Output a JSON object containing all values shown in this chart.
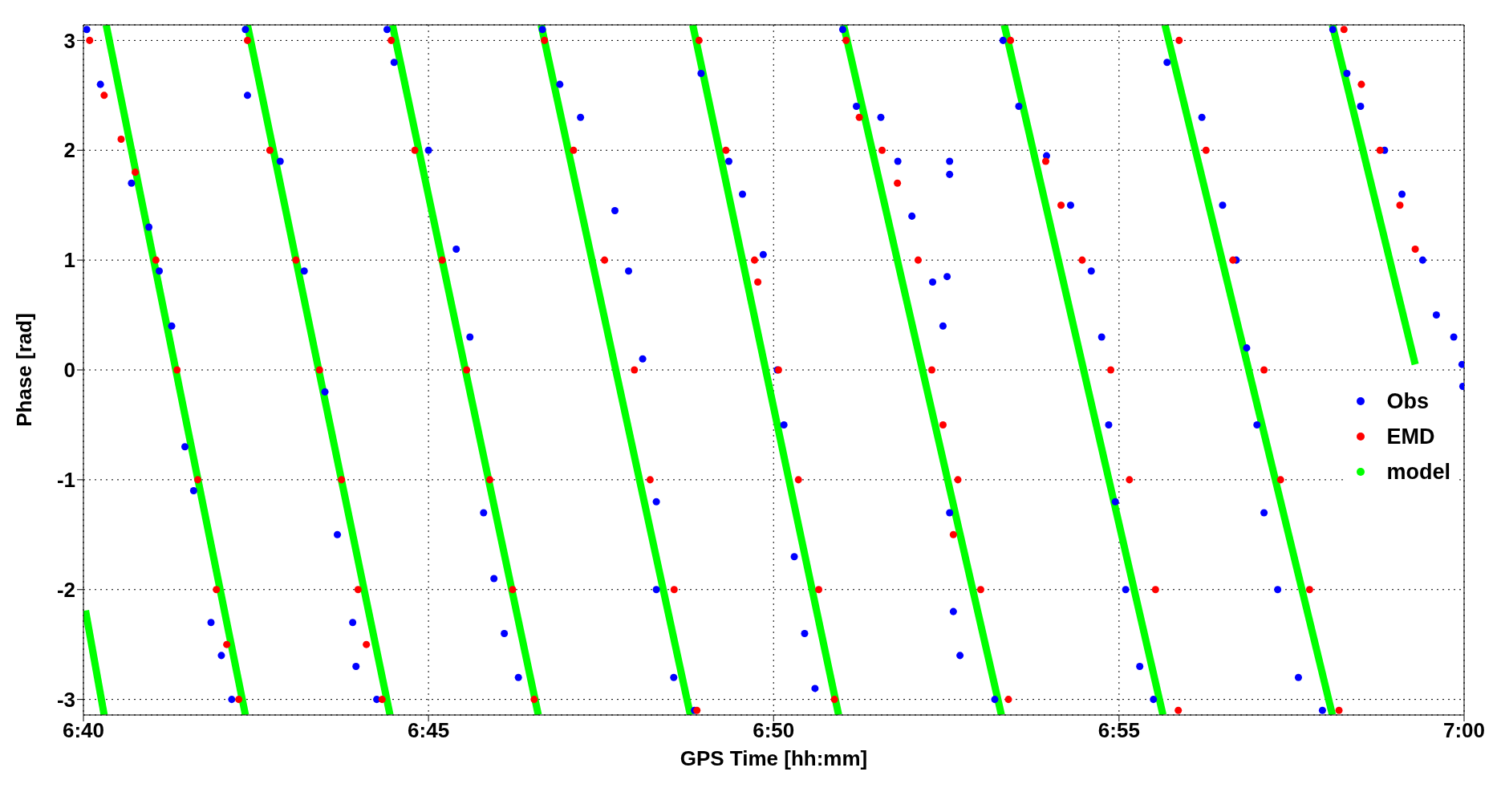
{
  "chart_data": {
    "type": "scatter",
    "xlabel": "GPS Time [hh:mm]",
    "ylabel": "Phase [rad]",
    "xlim": [
      6.6667,
      7
    ],
    "xticks": [
      {
        "value": 6.6667,
        "label": "6:40"
      },
      {
        "value": 6.75,
        "label": "6:45"
      },
      {
        "value": 6.8333,
        "label": "6:50"
      },
      {
        "value": 6.9167,
        "label": "6:55"
      },
      {
        "value": 7,
        "label": "7:00"
      }
    ],
    "ylim": [
      -3.1416,
      3.1416
    ],
    "yticks": [
      -3,
      -2,
      -1,
      0,
      1,
      2,
      3
    ],
    "grid": true,
    "legend": "right",
    "marker": "circle",
    "series": [
      {
        "name": "Obs",
        "color": "#0000ff",
        "x": [
          6.6675,
          6.6708,
          6.6783,
          6.6825,
          6.685,
          6.688,
          6.6912,
          6.6933,
          6.6975,
          6.7,
          6.7025,
          6.7058,
          6.7063,
          6.7142,
          6.72,
          6.725,
          6.728,
          6.7317,
          6.7325,
          6.7375,
          6.74,
          6.7417,
          6.75,
          6.7567,
          6.76,
          6.7633,
          6.7658,
          6.7683,
          6.7717,
          6.7775,
          6.7817,
          6.7867,
          6.795,
          6.7983,
          6.8017,
          6.805,
          6.805,
          6.8092,
          6.8142,
          6.8158,
          6.8225,
          6.8258,
          6.8308,
          6.8342,
          6.8358,
          6.8383,
          6.8408,
          6.8433,
          6.85,
          6.8533,
          6.8592,
          6.8633,
          6.8667,
          6.8717,
          6.8742,
          6.8758,
          6.8758,
          6.8752,
          6.8758,
          6.8767,
          6.8783,
          6.8867,
          6.8887,
          6.8925,
          6.8992,
          6.905,
          6.91,
          6.9125,
          6.9142,
          6.9158,
          6.9183,
          6.9217,
          6.925,
          6.9283,
          6.9367,
          6.9417,
          6.945,
          6.9475,
          6.95,
          6.9517,
          6.955,
          6.96,
          6.9658,
          6.9683,
          6.9717,
          6.975,
          6.9808,
          6.985,
          6.99,
          6.9933,
          6.9975,
          6.9995,
          6.9997
        ],
        "values": [
          3.1,
          2.6,
          1.7,
          1.3,
          0.9,
          0.4,
          -0.7,
          -1.1,
          -2.3,
          -2.6,
          -3.0,
          3.1,
          2.5,
          1.9,
          0.9,
          -0.2,
          -1.5,
          -2.3,
          -2.7,
          -3.0,
          3.1,
          2.8,
          2.0,
          1.1,
          0.3,
          -1.3,
          -1.9,
          -2.4,
          -2.8,
          3.1,
          2.6,
          2.3,
          1.45,
          0.9,
          0.1,
          -1.2,
          -2.0,
          -2.8,
          -3.1,
          2.7,
          1.9,
          1.6,
          1.05,
          0.0,
          -0.5,
          -1.7,
          -2.4,
          -2.9,
          3.1,
          2.4,
          2.3,
          1.9,
          1.4,
          0.8,
          0.4,
          1.9,
          1.78,
          0.85,
          -1.3,
          -2.2,
          -2.6,
          -3.0,
          3.0,
          2.4,
          1.95,
          1.5,
          0.9,
          0.3,
          -0.5,
          -1.2,
          -2.0,
          -2.7,
          -3.0,
          2.8,
          2.3,
          1.5,
          1.0,
          0.2,
          -0.5,
          -1.3,
          -2.0,
          -2.8,
          -3.1,
          3.1,
          2.7,
          2.4,
          2.0,
          1.6,
          1.0,
          0.5,
          0.3,
          0.05,
          -0.15
        ]
      },
      {
        "name": "EMD",
        "color": "#ff0000",
        "x": [
          6.6682,
          6.6717,
          6.6758,
          6.6792,
          6.6842,
          6.6893,
          6.6943,
          6.6988,
          6.7013,
          6.7042,
          6.7063,
          6.7117,
          6.718,
          6.7237,
          6.729,
          6.733,
          6.735,
          6.7388,
          6.741,
          6.7467,
          6.7533,
          6.7592,
          6.7648,
          6.7703,
          6.7755,
          6.778,
          6.785,
          6.7925,
          6.7997,
          6.8035,
          6.8093,
          6.8148,
          6.8153,
          6.8218,
          6.8287,
          6.8295,
          6.8345,
          6.8393,
          6.8442,
          6.848,
          6.8508,
          6.854,
          6.8595,
          6.8632,
          6.8682,
          6.8715,
          6.8742,
          6.8778,
          6.8767,
          6.8833,
          6.89,
          6.8905,
          6.899,
          6.9027,
          6.9078,
          6.9147,
          6.9192,
          6.9255,
          6.931,
          6.9312,
          6.9377,
          6.9442,
          6.9517,
          6.9557,
          6.9627,
          6.9698,
          6.971,
          6.9752,
          6.9797,
          6.9845,
          6.9882
        ],
        "values": [
          3.0,
          2.5,
          2.1,
          1.8,
          1.0,
          0,
          -1,
          -2,
          -2.5,
          -3,
          3.0,
          2.0,
          1.0,
          0,
          -1,
          -2,
          -2.5,
          -3,
          3,
          2,
          1,
          0,
          -1,
          -2,
          -3,
          3,
          2,
          1,
          0,
          -1,
          -2,
          -3.1,
          3,
          2,
          1,
          0.8,
          0,
          -1,
          -2,
          -3,
          3,
          2.3,
          2,
          1.7,
          1,
          0,
          -0.5,
          -1,
          -1.5,
          -2,
          -3,
          3,
          1.9,
          1.5,
          1,
          0,
          -1,
          -2,
          -3.1,
          3,
          2,
          1,
          0,
          -1,
          -2,
          -3.1,
          3.1,
          2.6,
          2,
          1.5,
          1.1
        ]
      },
      {
        "name": "model",
        "color": "#00ff00",
        "type": "line",
        "marker": "none",
        "x": [
          6.6672,
          6.6717,
          6.6722,
          6.7058,
          6.7063,
          6.7407,
          6.7413,
          6.7765,
          6.7772,
          6.8132,
          6.8138,
          6.849,
          6.8502,
          6.8883,
          6.889,
          6.9273,
          6.9278,
          6.9682,
          6.9682,
          6.9882
        ],
        "values": [
          -2.19,
          -3.14,
          3.14,
          -3.14,
          3.14,
          -3.14,
          3.14,
          -3.14,
          3.14,
          -3.14,
          3.14,
          -3.14,
          3.14,
          -3.14,
          3.14,
          -3.14,
          3.14,
          -3.14,
          3.14,
          0.05
        ]
      }
    ]
  }
}
